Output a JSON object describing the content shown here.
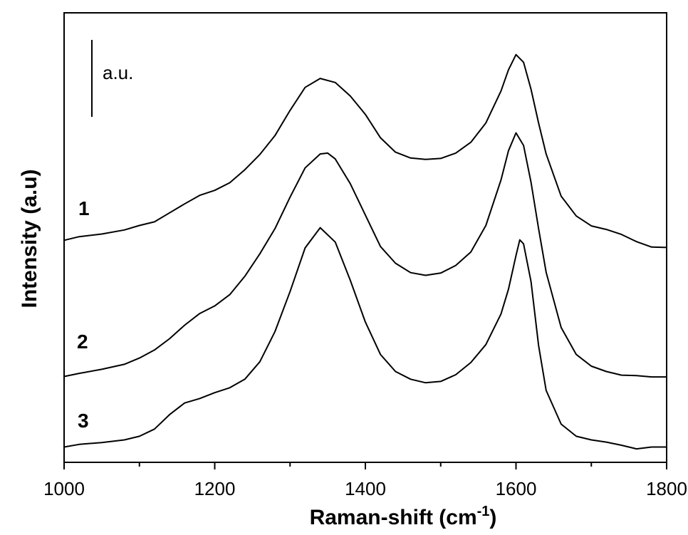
{
  "chart_data": {
    "type": "line",
    "title": "",
    "xlabel": "Raman-shift (cm",
    "xlabel_sup": "-1",
    "xlabel_suffix": ")",
    "ylabel": "Intensity (a.u)",
    "xlim": [
      1000,
      1800
    ],
    "ylim": [
      0,
      1
    ],
    "x_ticks": [
      1000,
      1200,
      1400,
      1600,
      1800
    ],
    "x_tick_labels": [
      "1000",
      "1200",
      "1400",
      "1600",
      "1800"
    ],
    "x_minor_ticks": [
      1100,
      1300,
      1500,
      1700
    ],
    "y_ticks_labeled": false,
    "scale_bar_label": "a.u.",
    "grid": false,
    "series": [
      {
        "name": "1",
        "points": [
          [
            1000,
            0.494
          ],
          [
            1020,
            0.502
          ],
          [
            1050,
            0.508
          ],
          [
            1080,
            0.517
          ],
          [
            1100,
            0.527
          ],
          [
            1120,
            0.535
          ],
          [
            1140,
            0.555
          ],
          [
            1160,
            0.575
          ],
          [
            1180,
            0.594
          ],
          [
            1200,
            0.605
          ],
          [
            1220,
            0.622
          ],
          [
            1240,
            0.651
          ],
          [
            1260,
            0.685
          ],
          [
            1280,
            0.727
          ],
          [
            1300,
            0.783
          ],
          [
            1320,
            0.834
          ],
          [
            1340,
            0.854
          ],
          [
            1360,
            0.845
          ],
          [
            1380,
            0.815
          ],
          [
            1400,
            0.774
          ],
          [
            1420,
            0.722
          ],
          [
            1440,
            0.69
          ],
          [
            1460,
            0.677
          ],
          [
            1480,
            0.674
          ],
          [
            1500,
            0.676
          ],
          [
            1520,
            0.688
          ],
          [
            1540,
            0.712
          ],
          [
            1560,
            0.755
          ],
          [
            1580,
            0.826
          ],
          [
            1590,
            0.873
          ],
          [
            1600,
            0.907
          ],
          [
            1610,
            0.89
          ],
          [
            1620,
            0.83
          ],
          [
            1630,
            0.755
          ],
          [
            1640,
            0.686
          ],
          [
            1660,
            0.592
          ],
          [
            1680,
            0.548
          ],
          [
            1700,
            0.526
          ],
          [
            1720,
            0.518
          ],
          [
            1740,
            0.507
          ],
          [
            1760,
            0.491
          ],
          [
            1780,
            0.479
          ],
          [
            1800,
            0.478
          ]
        ]
      },
      {
        "name": "2",
        "points": [
          [
            1000,
            0.191
          ],
          [
            1020,
            0.198
          ],
          [
            1050,
            0.207
          ],
          [
            1080,
            0.218
          ],
          [
            1100,
            0.232
          ],
          [
            1120,
            0.25
          ],
          [
            1140,
            0.275
          ],
          [
            1160,
            0.305
          ],
          [
            1180,
            0.331
          ],
          [
            1200,
            0.348
          ],
          [
            1220,
            0.373
          ],
          [
            1240,
            0.414
          ],
          [
            1260,
            0.464
          ],
          [
            1280,
            0.52
          ],
          [
            1300,
            0.59
          ],
          [
            1320,
            0.655
          ],
          [
            1340,
            0.686
          ],
          [
            1350,
            0.688
          ],
          [
            1360,
            0.675
          ],
          [
            1380,
            0.62
          ],
          [
            1400,
            0.55
          ],
          [
            1420,
            0.48
          ],
          [
            1440,
            0.443
          ],
          [
            1460,
            0.422
          ],
          [
            1480,
            0.416
          ],
          [
            1500,
            0.421
          ],
          [
            1520,
            0.438
          ],
          [
            1540,
            0.468
          ],
          [
            1560,
            0.527
          ],
          [
            1580,
            0.628
          ],
          [
            1590,
            0.693
          ],
          [
            1600,
            0.733
          ],
          [
            1610,
            0.705
          ],
          [
            1620,
            0.623
          ],
          [
            1630,
            0.52
          ],
          [
            1640,
            0.423
          ],
          [
            1660,
            0.3
          ],
          [
            1680,
            0.24
          ],
          [
            1700,
            0.214
          ],
          [
            1720,
            0.202
          ],
          [
            1740,
            0.194
          ],
          [
            1760,
            0.193
          ],
          [
            1780,
            0.19
          ],
          [
            1800,
            0.19
          ]
        ]
      },
      {
        "name": "3",
        "points": [
          [
            1000,
            0.034
          ],
          [
            1020,
            0.04
          ],
          [
            1050,
            0.044
          ],
          [
            1080,
            0.05
          ],
          [
            1100,
            0.058
          ],
          [
            1120,
            0.074
          ],
          [
            1140,
            0.106
          ],
          [
            1160,
            0.132
          ],
          [
            1180,
            0.142
          ],
          [
            1200,
            0.155
          ],
          [
            1220,
            0.166
          ],
          [
            1240,
            0.185
          ],
          [
            1260,
            0.224
          ],
          [
            1280,
            0.291
          ],
          [
            1300,
            0.38
          ],
          [
            1320,
            0.477
          ],
          [
            1340,
            0.522
          ],
          [
            1360,
            0.49
          ],
          [
            1380,
            0.405
          ],
          [
            1400,
            0.312
          ],
          [
            1420,
            0.24
          ],
          [
            1440,
            0.202
          ],
          [
            1460,
            0.185
          ],
          [
            1480,
            0.177
          ],
          [
            1500,
            0.18
          ],
          [
            1520,
            0.195
          ],
          [
            1540,
            0.222
          ],
          [
            1560,
            0.262
          ],
          [
            1580,
            0.33
          ],
          [
            1590,
            0.385
          ],
          [
            1600,
            0.46
          ],
          [
            1605,
            0.495
          ],
          [
            1610,
            0.486
          ],
          [
            1620,
            0.402
          ],
          [
            1630,
            0.26
          ],
          [
            1640,
            0.16
          ],
          [
            1660,
            0.085
          ],
          [
            1680,
            0.058
          ],
          [
            1700,
            0.05
          ],
          [
            1720,
            0.045
          ],
          [
            1740,
            0.038
          ],
          [
            1760,
            0.03
          ],
          [
            1780,
            0.034
          ],
          [
            1800,
            0.034
          ]
        ]
      }
    ]
  }
}
